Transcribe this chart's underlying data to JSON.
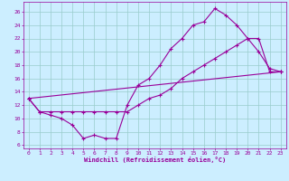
{
  "bg_color": "#cceeff",
  "line_color": "#990099",
  "grid_color": "#99cccc",
  "xlabel": "Windchill (Refroidissement éolien,°C)",
  "xlim": [
    -0.5,
    23.5
  ],
  "ylim": [
    5.5,
    27.5
  ],
  "yticks": [
    6,
    8,
    10,
    12,
    14,
    16,
    18,
    20,
    22,
    24,
    26
  ],
  "xticks": [
    0,
    1,
    2,
    3,
    4,
    5,
    6,
    7,
    8,
    9,
    10,
    11,
    12,
    13,
    14,
    15,
    16,
    17,
    18,
    19,
    20,
    21,
    22,
    23
  ],
  "line1_x": [
    0,
    1,
    2,
    3,
    4,
    5,
    6,
    7,
    8,
    9,
    10,
    11,
    12,
    13,
    14,
    15,
    16,
    17,
    18,
    19,
    20,
    21,
    22,
    23
  ],
  "line1_y": [
    13,
    11,
    10.5,
    10,
    9,
    7,
    7.5,
    7,
    7,
    12,
    15,
    16,
    18,
    20.5,
    22,
    24,
    24.5,
    26.5,
    25.5,
    24,
    22,
    20,
    17.5,
    17
  ],
  "line2_x": [
    0,
    1,
    2,
    3,
    4,
    5,
    6,
    7,
    8,
    9,
    10,
    11,
    12,
    13,
    14,
    15,
    16,
    17,
    18,
    19,
    20,
    21,
    22,
    23
  ],
  "line2_y": [
    13,
    11,
    11,
    11,
    11,
    11,
    11,
    11,
    11,
    11,
    12,
    13,
    13.5,
    14.5,
    16,
    17,
    18,
    19,
    20,
    21,
    22,
    22,
    17,
    17
  ],
  "line3_x": [
    0,
    23
  ],
  "line3_y": [
    13,
    17
  ],
  "marker": "+"
}
